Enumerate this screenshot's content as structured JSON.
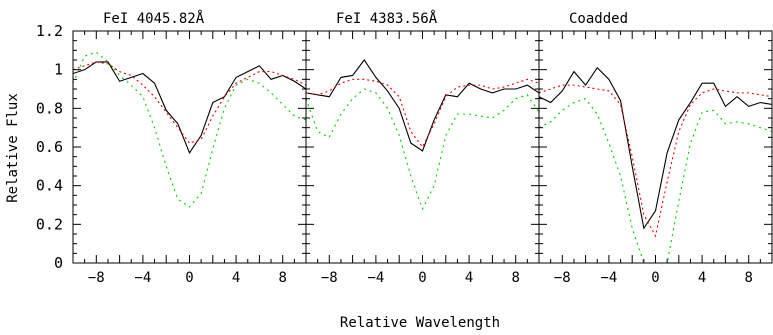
{
  "chart_data": {
    "type": "line",
    "xlabel": "Relative Wavelength",
    "ylabel": "Relative Flux",
    "xlim": [
      -10,
      10
    ],
    "ylim": [
      0,
      1.2
    ],
    "xticks": [
      -8,
      -4,
      0,
      4,
      8
    ],
    "xtick_labels": [
      "−8",
      "−4",
      "0",
      "4",
      "8"
    ],
    "yticks": [
      0,
      0.2,
      0.4,
      0.6,
      0.8,
      1,
      1.2
    ],
    "ytick_labels": [
      "0",
      "0.2",
      "0.4",
      "0.6",
      "0.8",
      "1",
      "1.2"
    ],
    "series_styles": [
      {
        "color": "#000000",
        "dash": ""
      },
      {
        "color": "#e00000",
        "dash": "2,3"
      },
      {
        "color": "#00cc00",
        "dash": "2,4"
      }
    ],
    "panels": [
      {
        "title": "FeI  4045.82Å",
        "series": [
          {
            "x": [
              -10,
              -9,
              -8,
              -7,
              -6,
              -5,
              -4,
              -3,
              -2,
              -1,
              0,
              1,
              2,
              3,
              4,
              5,
              6,
              7,
              8,
              9,
              10
            ],
            "y": [
              0.98,
              1.0,
              1.04,
              1.04,
              0.94,
              0.96,
              0.98,
              0.93,
              0.79,
              0.72,
              0.57,
              0.66,
              0.83,
              0.86,
              0.96,
              0.99,
              1.02,
              0.95,
              0.97,
              0.94,
              0.9
            ]
          },
          {
            "x": [
              -10,
              -9,
              -8,
              -7,
              -6,
              -5,
              -4,
              -3,
              -2,
              -1,
              0,
              1,
              2,
              3,
              4,
              5,
              6,
              7,
              8,
              9,
              10
            ],
            "y": [
              1.0,
              1.02,
              1.04,
              1.03,
              0.99,
              0.97,
              0.92,
              0.86,
              0.78,
              0.7,
              0.62,
              0.64,
              0.76,
              0.86,
              0.93,
              0.96,
              0.99,
              0.99,
              0.97,
              0.95,
              0.92
            ]
          },
          {
            "x": [
              -10,
              -9,
              -8,
              -7,
              -6,
              -5,
              -4,
              -3,
              -2,
              -1,
              0,
              1,
              2,
              3,
              4,
              5,
              6,
              7,
              8,
              9,
              10
            ],
            "y": [
              0.93,
              1.07,
              1.09,
              1.04,
              0.97,
              0.92,
              0.86,
              0.7,
              0.5,
              0.33,
              0.29,
              0.36,
              0.59,
              0.8,
              0.92,
              0.95,
              0.93,
              0.88,
              0.82,
              0.76,
              0.74
            ]
          }
        ]
      },
      {
        "title": "FeI  4383.56Å",
        "series": [
          {
            "x": [
              -10,
              -9,
              -8,
              -7,
              -6,
              -5,
              -4,
              -3,
              -2,
              -1,
              0,
              1,
              2,
              3,
              4,
              5,
              6,
              7,
              8,
              9,
              10
            ],
            "y": [
              0.88,
              0.87,
              0.86,
              0.96,
              0.97,
              1.05,
              0.96,
              0.89,
              0.8,
              0.62,
              0.58,
              0.74,
              0.87,
              0.86,
              0.93,
              0.9,
              0.88,
              0.9,
              0.9,
              0.92,
              0.88
            ]
          },
          {
            "x": [
              -10,
              -9,
              -8,
              -7,
              -6,
              -5,
              -4,
              -3,
              -2,
              -1,
              0,
              1,
              2,
              3,
              4,
              5,
              6,
              7,
              8,
              9,
              10
            ],
            "y": [
              0.88,
              0.87,
              0.89,
              0.93,
              0.95,
              0.95,
              0.94,
              0.92,
              0.86,
              0.68,
              0.6,
              0.72,
              0.86,
              0.91,
              0.92,
              0.92,
              0.9,
              0.91,
              0.93,
              0.95,
              0.93
            ]
          },
          {
            "x": [
              -10,
              -9,
              -8,
              -7,
              -6,
              -5,
              -4,
              -3,
              -2,
              -1,
              0,
              1,
              2,
              3,
              4,
              5,
              6,
              7,
              8,
              9,
              10
            ],
            "y": [
              0.85,
              0.68,
              0.65,
              0.77,
              0.85,
              0.9,
              0.88,
              0.8,
              0.66,
              0.45,
              0.28,
              0.4,
              0.66,
              0.77,
              0.77,
              0.76,
              0.75,
              0.79,
              0.85,
              0.87,
              0.78
            ]
          }
        ]
      },
      {
        "title": "Coadded",
        "series": [
          {
            "x": [
              -10,
              -9,
              -8,
              -7,
              -6,
              -5,
              -4,
              -3,
              -2,
              -1,
              0,
              1,
              2,
              3,
              4,
              5,
              6,
              7,
              8,
              9,
              10
            ],
            "y": [
              0.86,
              0.83,
              0.89,
              0.99,
              0.92,
              1.01,
              0.95,
              0.84,
              0.5,
              0.18,
              0.27,
              0.57,
              0.74,
              0.83,
              0.93,
              0.93,
              0.81,
              0.86,
              0.81,
              0.83,
              0.82
            ]
          },
          {
            "x": [
              -10,
              -9,
              -8,
              -7,
              -6,
              -5,
              -4,
              -3,
              -2,
              -1,
              0,
              1,
              2,
              3,
              4,
              5,
              6,
              7,
              8,
              9,
              10
            ],
            "y": [
              0.88,
              0.9,
              0.92,
              0.92,
              0.91,
              0.9,
              0.89,
              0.82,
              0.55,
              0.25,
              0.14,
              0.42,
              0.68,
              0.82,
              0.88,
              0.9,
              0.89,
              0.88,
              0.88,
              0.87,
              0.86
            ]
          },
          {
            "x": [
              -10,
              -9,
              -8,
              -7,
              -6,
              -5,
              -4,
              -3,
              -2,
              -1,
              0,
              1,
              2,
              3,
              4,
              5,
              6,
              7,
              8,
              9,
              10
            ],
            "y": [
              0.7,
              0.73,
              0.79,
              0.83,
              0.85,
              0.77,
              0.62,
              0.45,
              0.18,
              0.0,
              0.0,
              0.0,
              0.32,
              0.62,
              0.78,
              0.79,
              0.72,
              0.73,
              0.72,
              0.7,
              0.68
            ]
          }
        ]
      }
    ]
  }
}
